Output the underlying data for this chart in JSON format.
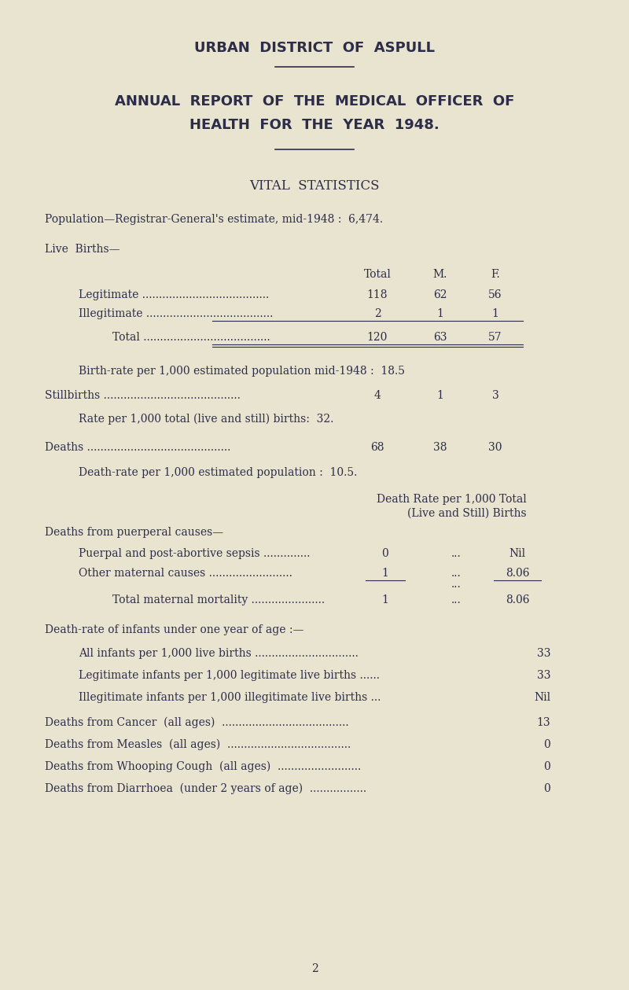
{
  "bg_color": "#e8e4d0",
  "text_color": "#2d2d4a",
  "title1": "URBAN  DISTRICT  OF  ASPULL",
  "title2": "ANNUAL  REPORT  OF  THE  MEDICAL  OFFICER  OF",
  "title3": "HEALTH  FOR  THE  YEAR  1948.",
  "section1": "VITAL  STATISTICS",
  "pop_line": "Population—Registrar-General's estimate, mid-1948 :  6,474.",
  "live_births_header": "Live  Births—",
  "birth_rate_line": "Birth-rate per 1,000 estimated population mid-1948 :  18.5",
  "rate_still_line": "Rate per 1,000 total (live and still) births:  32.",
  "death_rate_line": "Death-rate per 1,000 estimated population :  10.5.",
  "dr_header1": "Death Rate per 1,000 Total",
  "dr_header2": "(Live and Still) Births",
  "puerperal_header": "Deaths from puerperal causes—",
  "puerpal_label": "Puerpal and post-abortive sepsis ..............",
  "other_maternal_label": "Other maternal causes .........................",
  "total_maternal_label": "Total maternal mortality ......................",
  "infant_death_header": "Death-rate of infants under one year of age :—",
  "all_infants_label": "All infants per 1,000 live births ...............................",
  "all_infants_val": "33",
  "legit_infants_label": "Legitimate infants per 1,000 legitimate live births ......",
  "legit_infants_val": "33",
  "illeg_infants_label": "Illegitimate infants per 1,000 illegitimate live births ...",
  "illeg_infants_val": "Nil",
  "cancer_label": "Deaths from Cancer  (all ages)  ......................................",
  "cancer_val": "13",
  "measles_label": "Deaths from Measles  (all ages)  .....................................",
  "measles_val": "0",
  "whooping_label": "Deaths from Whooping Cough  (all ages)  .........................",
  "whooping_val": "0",
  "diarrhoea_label": "Deaths from Diarrhoea  (under 2 years of age)  .................",
  "diarrhoea_val": "0",
  "page_num": "2"
}
